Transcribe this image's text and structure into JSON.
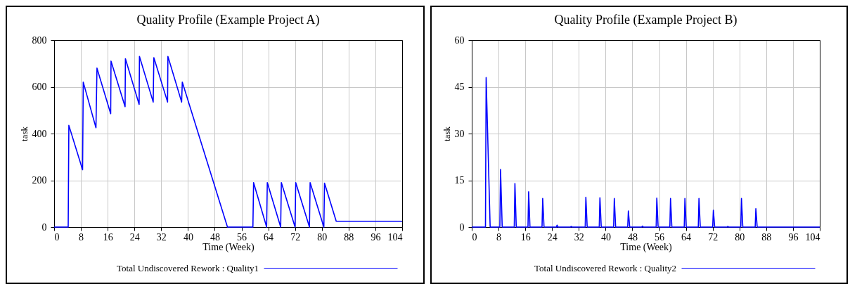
{
  "chart_data": [
    {
      "type": "line",
      "title": "Quality Profile (Example Project A)",
      "xlabel": "Time (Week)",
      "ylabel": "task",
      "xlim": [
        0,
        104
      ],
      "xticks": [
        0,
        8,
        16,
        24,
        32,
        40,
        48,
        56,
        64,
        72,
        80,
        88,
        96,
        104
      ],
      "ylim": [
        0,
        800
      ],
      "yticks": [
        0,
        200,
        400,
        600,
        800
      ],
      "grid": true,
      "legend": "bottom",
      "series": [
        {
          "name": "Total Undiscovered Rework : Quality1",
          "color": "#0000ff",
          "x": [
            0,
            4.2,
            4.4,
            8.5,
            8.7,
            12.5,
            12.8,
            16.9,
            17.0,
            21.2,
            21.3,
            25.4,
            25.5,
            29.6,
            29.8,
            33.9,
            34.0,
            38.1,
            38.3,
            51.8,
            59.4,
            59.6,
            63.5,
            63.7,
            67.7,
            67.9,
            72.0,
            72.2,
            76.3,
            76.5,
            80.6,
            80.8,
            84.3,
            104
          ],
          "values": [
            0,
            0,
            435,
            245,
            620,
            425,
            680,
            485,
            710,
            515,
            720,
            525,
            730,
            535,
            725,
            535,
            730,
            535,
            620,
            0,
            0,
            190,
            0,
            190,
            0,
            190,
            0,
            190,
            0,
            190,
            0,
            188,
            25,
            25
          ]
        }
      ]
    },
    {
      "type": "line",
      "title": "Quality Profile (Example Project B)",
      "xlabel": "Time (Week)",
      "ylabel": "task",
      "xlim": [
        0,
        104
      ],
      "xticks": [
        0,
        8,
        16,
        24,
        32,
        40,
        48,
        56,
        64,
        72,
        80,
        88,
        96,
        104
      ],
      "ylim": [
        0,
        60
      ],
      "yticks": [
        0,
        15,
        30,
        45,
        60
      ],
      "grid": true,
      "legend": "bottom",
      "series": [
        {
          "name": "Total Undiscovered Rework : Quality2",
          "color": "#0000ff",
          "x": [
            0,
            4.1,
            4.3,
            5.5,
            8.4,
            8.6,
            9.1,
            12.7,
            12.9,
            13.3,
            16.8,
            17.0,
            17.4,
            21.0,
            21.2,
            21.6,
            25.3,
            25.5,
            25.8,
            29.5,
            29.7,
            30.0,
            33.9,
            34.1,
            34.5,
            38.1,
            38.3,
            38.7,
            42.4,
            42.6,
            43.0,
            46.6,
            46.8,
            47.2,
            50.8,
            51.0,
            51.3,
            55.1,
            55.3,
            55.7,
            59.2,
            59.4,
            59.8,
            63.5,
            63.7,
            64.1,
            67.7,
            67.9,
            68.3,
            72.0,
            72.2,
            72.6,
            76.3,
            76.5,
            76.8,
            80.4,
            80.6,
            81.0,
            84.7,
            84.9,
            85.3,
            104
          ],
          "values": [
            0,
            0,
            48,
            0,
            0,
            18.5,
            0,
            0,
            14,
            0,
            0,
            11.3,
            0,
            0,
            9.2,
            0,
            0,
            0.6,
            0,
            0,
            0.2,
            0,
            0,
            9.6,
            0,
            0,
            9.4,
            0,
            0,
            9.2,
            0,
            0,
            5.2,
            0,
            0,
            0.3,
            0,
            0,
            9.3,
            0,
            0,
            9.2,
            0,
            0,
            9.2,
            0,
            0,
            9.2,
            0,
            0,
            5.4,
            0,
            0,
            0.2,
            0,
            0,
            9.2,
            0,
            0,
            5.9,
            0,
            0
          ]
        }
      ]
    }
  ]
}
